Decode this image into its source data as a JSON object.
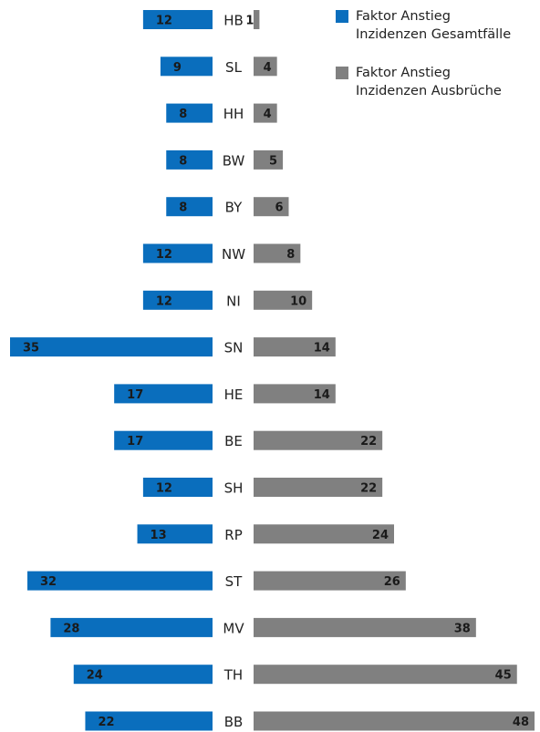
{
  "chart_data": {
    "type": "bar",
    "orientation": "horizontal-diverging",
    "categories": [
      "HB",
      "SL",
      "HH",
      "BW",
      "BY",
      "NW",
      "NI",
      "SN",
      "HE",
      "BE",
      "SH",
      "RP",
      "ST",
      "MV",
      "TH",
      "BB"
    ],
    "series": [
      {
        "name": "Faktor Anstieg Inzidenzen Gesamtfälle",
        "color": "#0a6ebd",
        "direction": "left",
        "values": [
          12,
          9,
          8,
          8,
          8,
          12,
          12,
          35,
          17,
          17,
          12,
          13,
          32,
          28,
          24,
          22
        ]
      },
      {
        "name": "Faktor Anstieg Inzidenzen Ausbrüche",
        "color": "#808080",
        "direction": "right",
        "values": [
          1,
          4,
          4,
          5,
          6,
          8,
          10,
          14,
          14,
          22,
          22,
          24,
          26,
          38,
          45,
          48
        ]
      }
    ],
    "legend": {
      "position": "top-right",
      "entries": [
        {
          "lines": [
            "Faktor Anstieg",
            "Inzidenzen Gesamtfälle"
          ],
          "color": "#0a6ebd"
        },
        {
          "lines": [
            "Faktor Anstieg",
            "Inzidenzen Ausbrüche"
          ],
          "color": "#808080"
        }
      ]
    },
    "grid": false
  }
}
